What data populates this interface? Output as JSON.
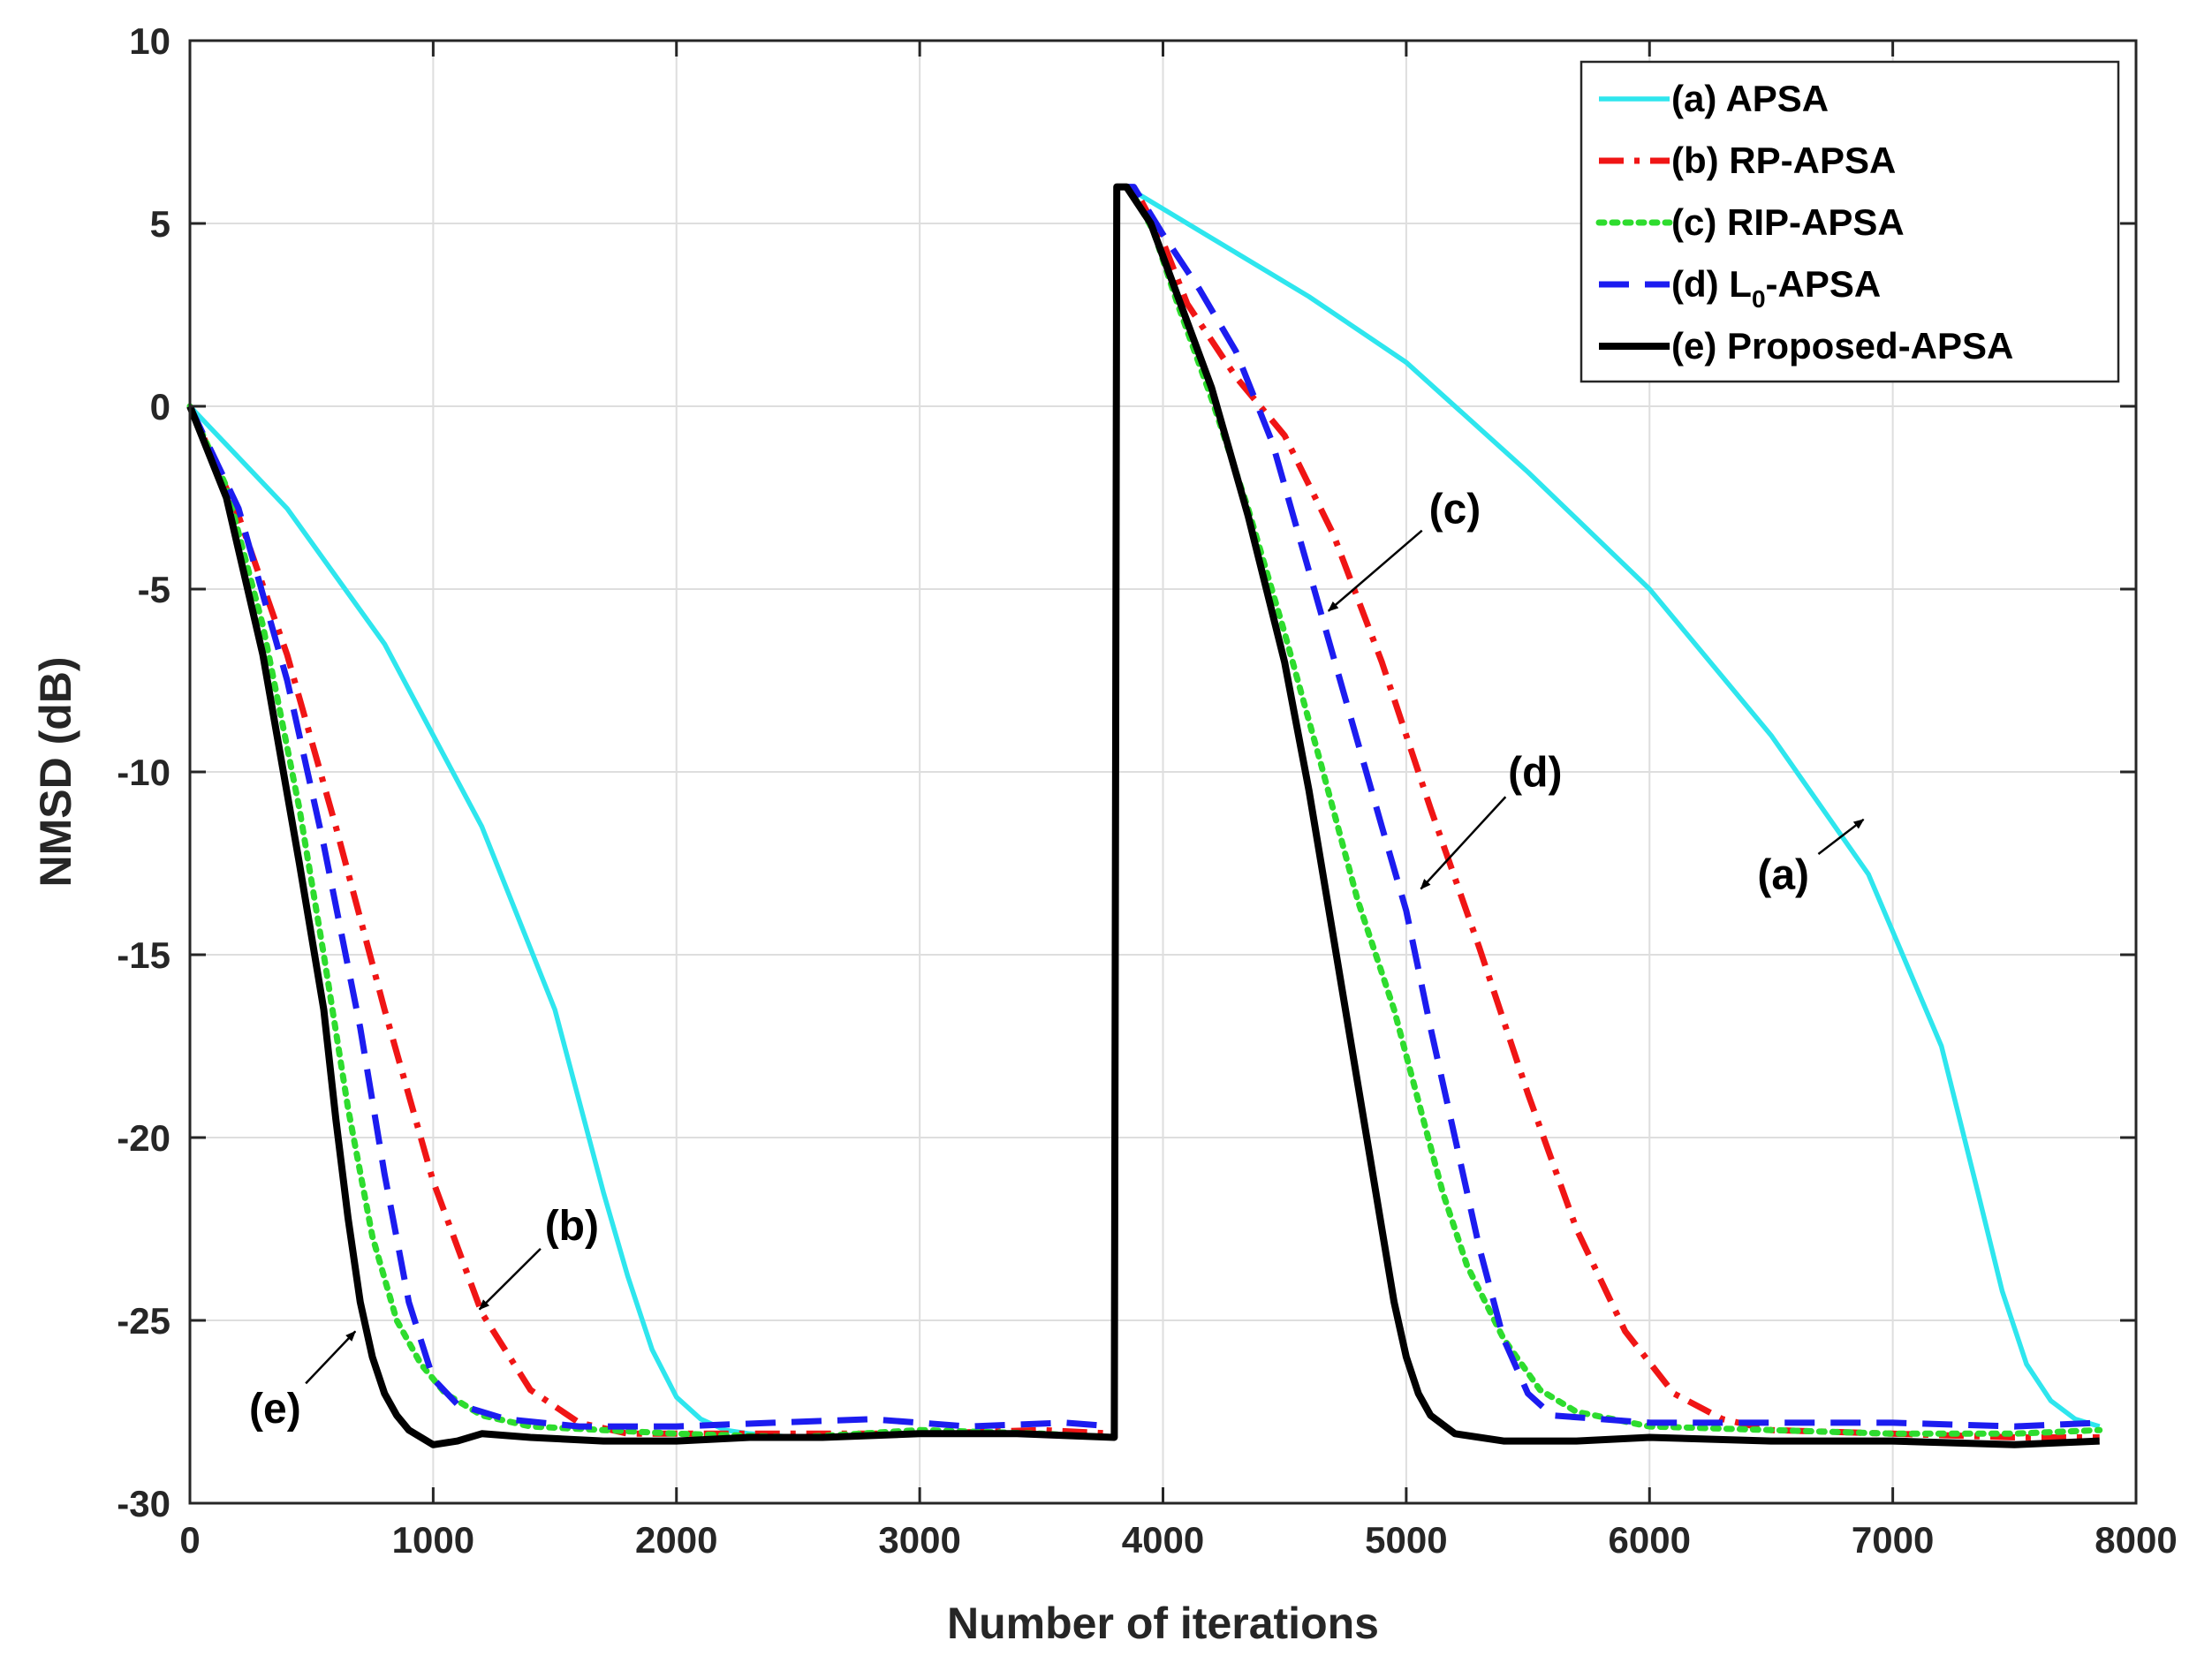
{
  "chart_data": {
    "type": "line",
    "title": "",
    "xlabel": "Number of iterations",
    "ylabel": "NMSD (dB)",
    "xlim": [
      0,
      8000
    ],
    "ylim": [
      -30,
      10
    ],
    "xticks": [
      0,
      1000,
      2000,
      3000,
      4000,
      5000,
      6000,
      7000,
      8000
    ],
    "yticks": [
      10,
      5,
      0,
      -5,
      -10,
      -15,
      -20,
      -25,
      -30
    ],
    "xtick_labels": [
      "0",
      "1000",
      "2000",
      "3000",
      "4000",
      "5000",
      "6000",
      "7000",
      "8000"
    ],
    "ytick_labels": [
      "10",
      "5",
      "0",
      "-5",
      "-10",
      "-15",
      "-20",
      "-25",
      "-30"
    ],
    "grid": true,
    "legend_position": "top-right",
    "series": [
      {
        "name": "(a) APSA",
        "legend_prefix": "(a) APSA",
        "legend_sub": "",
        "legend_suffix": "",
        "color": "#2EE6EE",
        "style": "solid",
        "x": [
          0,
          400,
          800,
          1200,
          1500,
          1700,
          1800,
          1900,
          2000,
          2100,
          2200,
          2300,
          2500,
          3000,
          3500,
          3800,
          3810,
          3850,
          4200,
          4600,
          5000,
          5500,
          6000,
          6500,
          6900,
          7200,
          7350,
          7450,
          7550,
          7650,
          7750,
          7850
        ],
        "y": [
          0,
          -2.8,
          -6.5,
          -11.5,
          -16.5,
          -21.5,
          -23.8,
          -25.8,
          -27.1,
          -27.7,
          -28.0,
          -28.1,
          -28.2,
          -28.1,
          -28.1,
          -28.2,
          6,
          6,
          4.6,
          3.0,
          1.2,
          -1.8,
          -5.0,
          -9.0,
          -12.8,
          -17.5,
          -21.5,
          -24.2,
          -26.2,
          -27.2,
          -27.7,
          -27.9
        ]
      },
      {
        "name": "(b) RP-APSA",
        "legend_prefix": "(b) RP-APSA",
        "legend_sub": "",
        "legend_suffix": "",
        "color": "#F01515",
        "style": "dashdot",
        "x": [
          0,
          200,
          400,
          600,
          800,
          1000,
          1200,
          1400,
          1600,
          1800,
          2000,
          2500,
          3000,
          3500,
          3800,
          3810,
          3880,
          4000,
          4100,
          4300,
          4500,
          4700,
          4900,
          5100,
          5300,
          5500,
          5700,
          5900,
          6100,
          6300,
          6500,
          7000,
          7500,
          7850
        ],
        "y": [
          0,
          -3.0,
          -6.8,
          -11.5,
          -16.5,
          -21.2,
          -24.8,
          -26.9,
          -27.8,
          -28.1,
          -28.1,
          -28.1,
          -28.1,
          -28.0,
          -28.1,
          6,
          6,
          4.5,
          2.8,
          0.8,
          -0.8,
          -3.5,
          -7.0,
          -11.0,
          -14.8,
          -18.8,
          -22.5,
          -25.3,
          -27.0,
          -27.7,
          -28.0,
          -28.1,
          -28.2,
          -28.2
        ]
      },
      {
        "name": "(c) RIP-APSA",
        "legend_prefix": "(c) RIP-APSA",
        "legend_sub": "",
        "legend_suffix": "",
        "color": "#2EDC2E",
        "style": "dotted",
        "x": [
          0,
          150,
          300,
          450,
          550,
          650,
          750,
          850,
          950,
          1050,
          1200,
          1400,
          1700,
          2000,
          2500,
          3000,
          3500,
          3800,
          3810,
          3860,
          3960,
          4060,
          4200,
          4350,
          4500,
          4650,
          4800,
          4950,
          5050,
          5150,
          5250,
          5400,
          5550,
          5700,
          6000,
          6500,
          7000,
          7500,
          7850
        ],
        "y": [
          0,
          -2.2,
          -6.0,
          -11.0,
          -15.0,
          -19.2,
          -22.7,
          -25.0,
          -26.2,
          -27.0,
          -27.6,
          -27.9,
          -28.0,
          -28.1,
          -28.2,
          -28.0,
          -28.1,
          -28.2,
          6,
          6,
          4.8,
          2.8,
          0.2,
          -2.8,
          -6.2,
          -9.8,
          -13.5,
          -16.5,
          -19.0,
          -21.5,
          -23.5,
          -25.5,
          -26.9,
          -27.5,
          -27.9,
          -28.0,
          -28.1,
          -28.1,
          -28.0
        ]
      },
      {
        "name": "(d) L0-APSA",
        "legend_prefix": "(d) L",
        "legend_sub": "0",
        "legend_suffix": "-APSA",
        "color": "#1C1CF0",
        "style": "dashed",
        "x": [
          0,
          200,
          400,
          550,
          700,
          800,
          900,
          1000,
          1100,
          1300,
          1600,
          2000,
          2400,
          2800,
          3200,
          3600,
          3800,
          3810,
          3880,
          4000,
          4150,
          4300,
          4450,
          4600,
          4750,
          4900,
          5000,
          5100,
          5200,
          5300,
          5400,
          5500,
          5600,
          5800,
          6000,
          6500,
          7000,
          7500,
          7850
        ],
        "y": [
          0,
          -2.8,
          -7.5,
          -12.0,
          -17.0,
          -21.0,
          -24.5,
          -26.6,
          -27.3,
          -27.7,
          -27.9,
          -27.9,
          -27.8,
          -27.7,
          -27.9,
          -27.8,
          -27.9,
          6,
          6,
          4.7,
          3.2,
          1.5,
          -1.0,
          -4.5,
          -8.0,
          -11.5,
          -13.8,
          -17.0,
          -20.0,
          -23.0,
          -25.5,
          -27.0,
          -27.6,
          -27.7,
          -27.8,
          -27.8,
          -27.8,
          -27.9,
          -27.8
        ]
      },
      {
        "name": "(e) Proposed-APSA",
        "legend_prefix": "(e) Proposed-APSA",
        "legend_sub": "",
        "legend_suffix": "",
        "color": "#000000",
        "style": "solid",
        "x": [
          0,
          150,
          300,
          450,
          550,
          600,
          650,
          700,
          750,
          800,
          850,
          900,
          1000,
          1100,
          1200,
          1400,
          1700,
          2000,
          2300,
          2600,
          3000,
          3400,
          3800,
          3810,
          3850,
          3950,
          4050,
          4200,
          4350,
          4500,
          4600,
          4700,
          4800,
          4850,
          4900,
          4950,
          5000,
          5050,
          5100,
          5200,
          5400,
          5700,
          6000,
          6500,
          7000,
          7500,
          7850
        ],
        "y": [
          0,
          -2.5,
          -6.8,
          -12.5,
          -16.5,
          -19.5,
          -22.2,
          -24.5,
          -26.0,
          -27.0,
          -27.6,
          -28.0,
          -28.4,
          -28.3,
          -28.1,
          -28.2,
          -28.3,
          -28.3,
          -28.2,
          -28.2,
          -28.1,
          -28.1,
          -28.2,
          6,
          6,
          5.0,
          3.2,
          0.5,
          -3.0,
          -7.0,
          -10.5,
          -14.5,
          -18.5,
          -20.5,
          -22.5,
          -24.5,
          -26.0,
          -27.0,
          -27.6,
          -28.1,
          -28.3,
          -28.3,
          -28.2,
          -28.3,
          -28.3,
          -28.4,
          -28.3
        ]
      }
    ],
    "annotations": [
      {
        "text": "(a)",
        "x": 6550,
        "y": -13.2,
        "arrow_to": [
          6880,
          -11.3
        ]
      },
      {
        "text": "(b)",
        "x": 1570,
        "y": -22.8,
        "arrow_to": [
          1190,
          -24.7
        ]
      },
      {
        "text": "(c)",
        "x": 5200,
        "y": -3.2,
        "arrow_to": [
          4680,
          -5.6
        ]
      },
      {
        "text": "(d)",
        "x": 5530,
        "y": -10.4,
        "arrow_to": [
          5060,
          -13.2
        ]
      },
      {
        "text": "(e)",
        "x": 350,
        "y": -27.8,
        "arrow_to": [
          680,
          -25.3
        ]
      }
    ]
  }
}
